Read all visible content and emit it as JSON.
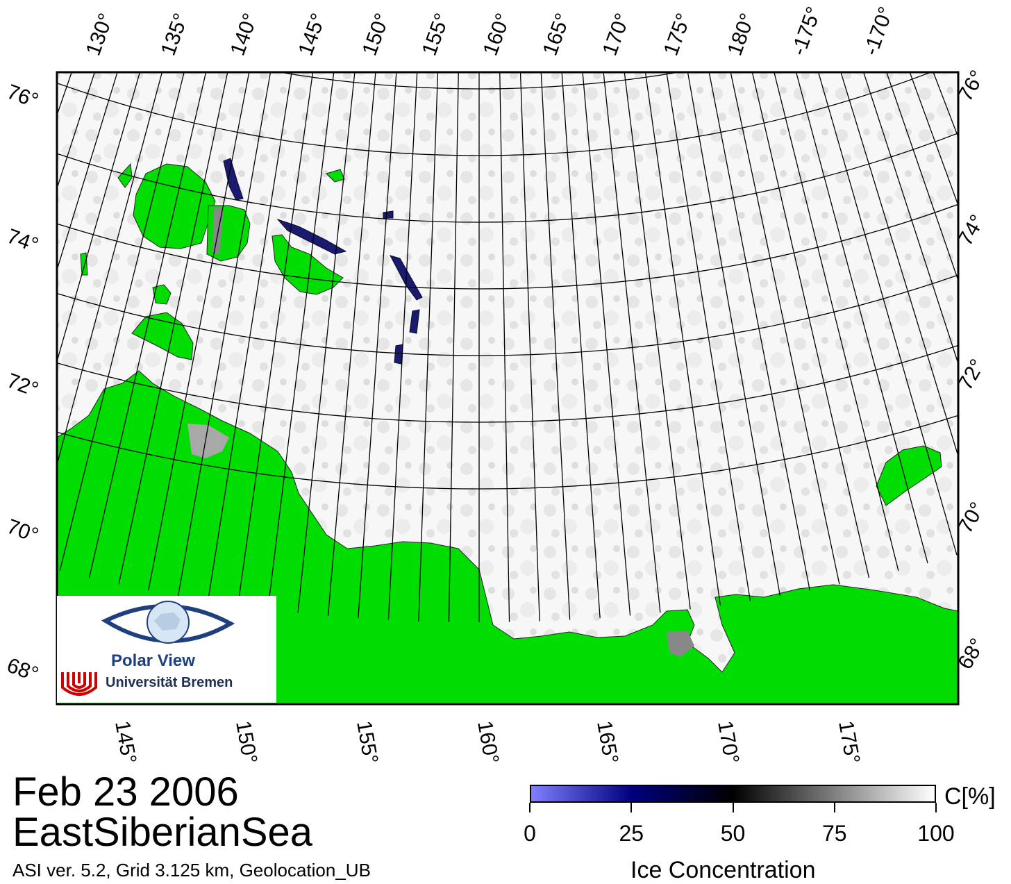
{
  "date": "Feb 23 2006",
  "region": "EastSiberianSea",
  "product_info": "ASI ver. 5.2,  Grid 3.125 km, Geolocation_UB",
  "colorbar": {
    "unit": "C[%]",
    "title": "Ice Concentration",
    "ticks": [
      "0",
      "25",
      "50",
      "75",
      "100"
    ],
    "range": [
      0,
      100
    ],
    "colors": [
      "#7f7fff",
      "#00007f",
      "#000000",
      "#7f7f7f",
      "#ffffff"
    ]
  },
  "top_lon_labels": [
    "130°",
    "135°",
    "140°",
    "145°",
    "150°",
    "155°",
    "160°",
    "165°",
    "170°",
    "175°",
    "180°",
    "-175°",
    "-170°"
  ],
  "bottom_lon_labels": [
    "145°",
    "150°",
    "155°",
    "160°",
    "165°",
    "170°",
    "175°"
  ],
  "lat_labels": [
    "76°",
    "74°",
    "72°",
    "70°",
    "68°"
  ],
  "logo": {
    "line1": "Polar View",
    "line2": "Universität Bremen",
    "icons": [
      "eye-icon",
      "bremen-u-logo"
    ]
  },
  "colors": {
    "land": "#00dd00",
    "coast_mask": "#888888",
    "ice_high": "#f4f4f4",
    "open_water": "#1a1a7a"
  }
}
